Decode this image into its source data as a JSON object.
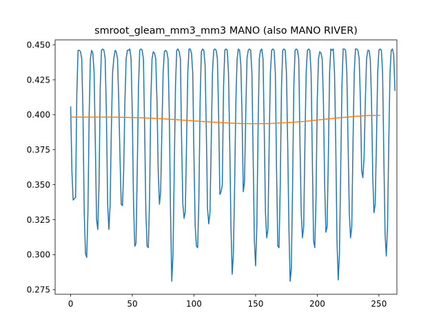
{
  "chart_data": {
    "type": "line",
    "title": "smroot_gleam_mm3_mm3 MANO (also MANO RIVER)",
    "xlabel": "",
    "ylabel": "",
    "xlim": [
      -12.6,
      264.6
    ],
    "ylim": [
      0.2717,
      0.4535
    ],
    "xticks": [
      0,
      50,
      100,
      150,
      200,
      250
    ],
    "yticks": [
      0.275,
      0.3,
      0.325,
      0.35,
      0.375,
      0.4,
      0.425,
      0.45
    ],
    "ytick_labels": [
      "0.275",
      "0.300",
      "0.325",
      "0.350",
      "0.375",
      "0.400",
      "0.425",
      "0.450"
    ],
    "grid": false,
    "legend": "none",
    "series": [
      {
        "color": "#1f77b4",
        "x_start": 0,
        "x_step": 1,
        "values": [
          0.406,
          0.36,
          0.339,
          0.34,
          0.341,
          0.415,
          0.446,
          0.446,
          0.445,
          0.44,
          0.4,
          0.33,
          0.301,
          0.298,
          0.33,
          0.4,
          0.44,
          0.446,
          0.444,
          0.43,
          0.38,
          0.325,
          0.318,
          0.35,
          0.42,
          0.446,
          0.447,
          0.446,
          0.44,
          0.4,
          0.336,
          0.318,
          0.335,
          0.39,
          0.43,
          0.44,
          0.446,
          0.445,
          0.44,
          0.41,
          0.37,
          0.336,
          0.335,
          0.36,
          0.41,
          0.44,
          0.446,
          0.446,
          0.447,
          0.44,
          0.4,
          0.336,
          0.306,
          0.308,
          0.36,
          0.42,
          0.446,
          0.447,
          0.446,
          0.44,
          0.39,
          0.33,
          0.306,
          0.305,
          0.34,
          0.41,
          0.44,
          0.445,
          0.444,
          0.44,
          0.41,
          0.36,
          0.336,
          0.345,
          0.39,
          0.43,
          0.445,
          0.446,
          0.445,
          0.44,
          0.4,
          0.33,
          0.281,
          0.3,
          0.36,
          0.42,
          0.446,
          0.447,
          0.445,
          0.44,
          0.38,
          0.336,
          0.326,
          0.331,
          0.38,
          0.43,
          0.447,
          0.447,
          0.444,
          0.43,
          0.37,
          0.32,
          0.306,
          0.305,
          0.34,
          0.41,
          0.445,
          0.447,
          0.446,
          0.436,
          0.39,
          0.333,
          0.322,
          0.33,
          0.38,
          0.43,
          0.446,
          0.447,
          0.446,
          0.44,
          0.4,
          0.343,
          0.345,
          0.35,
          0.42,
          0.446,
          0.447,
          0.446,
          0.43,
          0.38,
          0.32,
          0.286,
          0.301,
          0.35,
          0.41,
          0.44,
          0.447,
          0.446,
          0.436,
          0.4,
          0.345,
          0.352,
          0.4,
          0.44,
          0.446,
          0.447,
          0.446,
          0.43,
          0.37,
          0.31,
          0.292,
          0.32,
          0.39,
          0.44,
          0.446,
          0.447,
          0.44,
          0.39,
          0.33,
          0.312,
          0.318,
          0.38,
          0.43,
          0.446,
          0.447,
          0.446,
          0.43,
          0.36,
          0.306,
          0.305,
          0.35,
          0.42,
          0.446,
          0.447,
          0.446,
          0.43,
          0.38,
          0.32,
          0.281,
          0.29,
          0.35,
          0.42,
          0.446,
          0.447,
          0.446,
          0.44,
          0.38,
          0.33,
          0.312,
          0.32,
          0.38,
          0.43,
          0.446,
          0.447,
          0.446,
          0.43,
          0.37,
          0.31,
          0.305,
          0.34,
          0.41,
          0.44,
          0.445,
          0.444,
          0.44,
          0.41,
          0.35,
          0.316,
          0.32,
          0.37,
          0.43,
          0.447,
          0.446,
          0.447,
          0.43,
          0.38,
          0.31,
          0.282,
          0.3,
          0.36,
          0.42,
          0.447,
          0.447,
          0.446,
          0.43,
          0.38,
          0.33,
          0.312,
          0.32,
          0.38,
          0.43,
          0.447,
          0.447,
          0.446,
          0.44,
          0.41,
          0.36,
          0.355,
          0.37,
          0.41,
          0.44,
          0.446,
          0.446,
          0.44,
          0.41,
          0.356,
          0.33,
          0.336,
          0.38,
          0.43,
          0.446,
          0.447,
          0.446,
          0.43,
          0.37,
          0.315,
          0.299,
          0.32,
          0.38,
          0.43,
          0.446,
          0.447,
          0.443,
          0.417
        ]
      },
      {
        "color": "#ff7f0e",
        "x": [
          0,
          10,
          20,
          30,
          40,
          50,
          60,
          70,
          80,
          90,
          100,
          110,
          120,
          130,
          140,
          150,
          160,
          170,
          180,
          190,
          200,
          210,
          220,
          230,
          240,
          251
        ],
        "values": [
          0.3983,
          0.3983,
          0.3983,
          0.3983,
          0.3982,
          0.398,
          0.3977,
          0.3973,
          0.3968,
          0.3962,
          0.3956,
          0.395,
          0.3945,
          0.394,
          0.3937,
          0.3936,
          0.3937,
          0.3941,
          0.3946,
          0.3953,
          0.3962,
          0.3971,
          0.398,
          0.3988,
          0.3994,
          0.3996
        ]
      }
    ]
  }
}
